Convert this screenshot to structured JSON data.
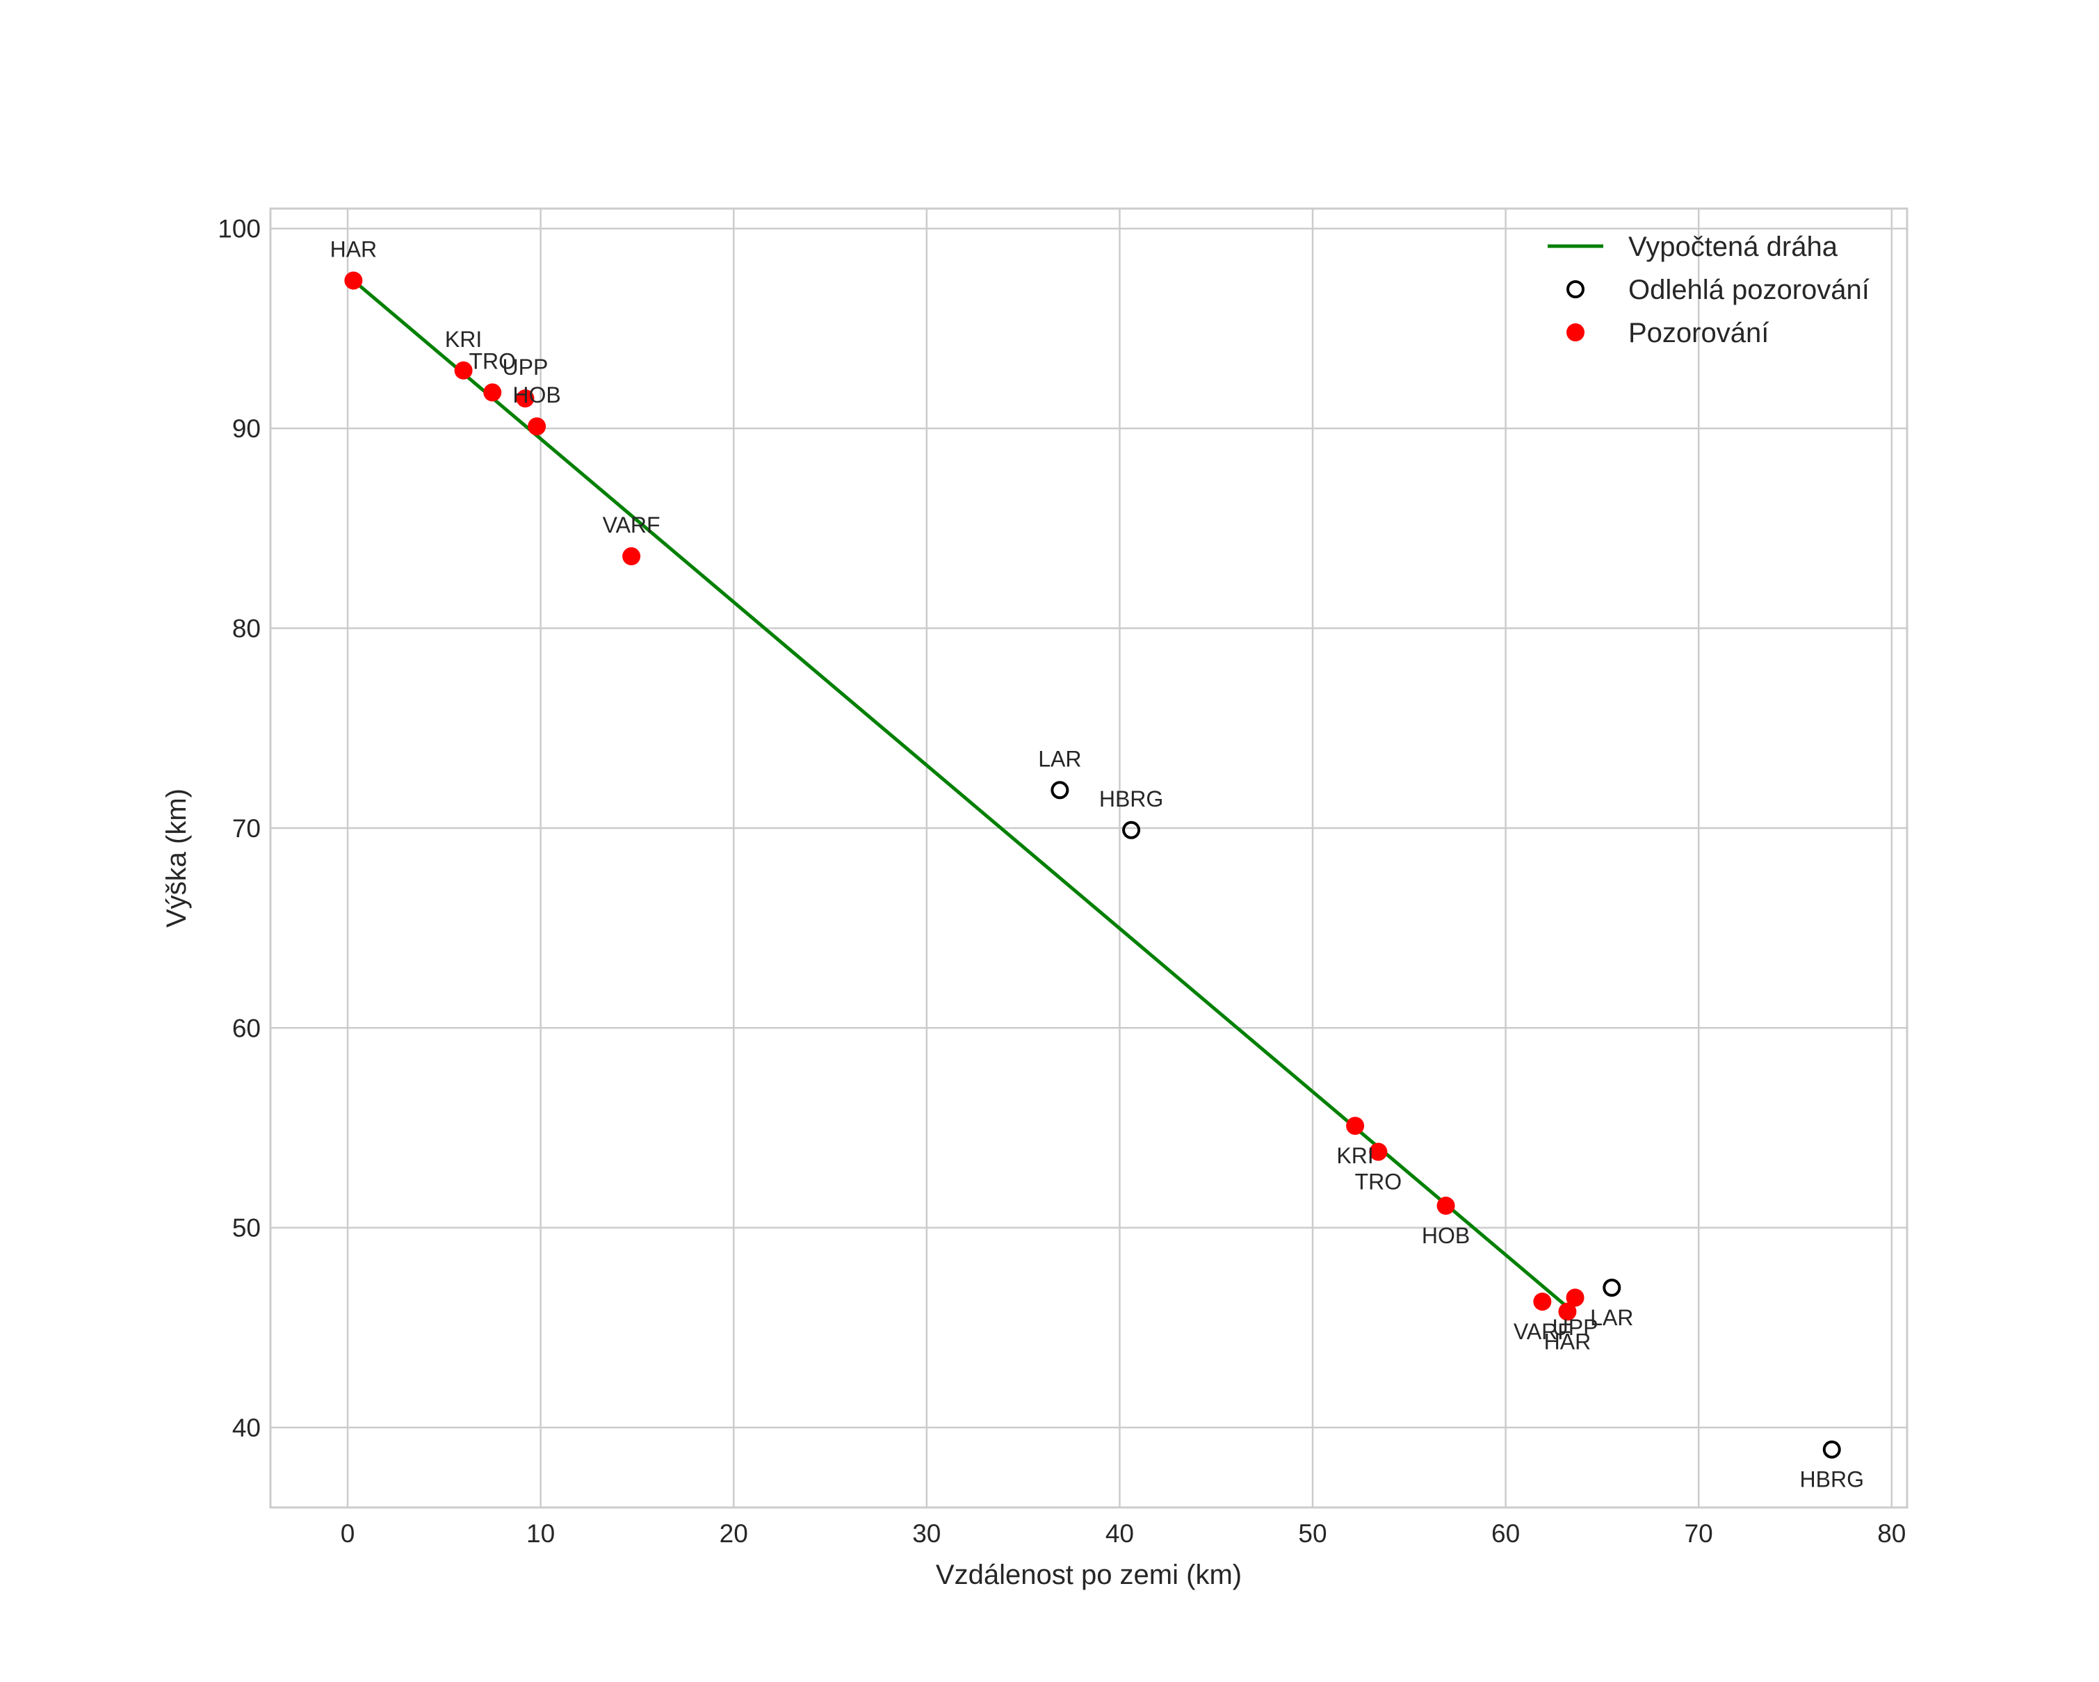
{
  "chart_data": {
    "type": "scatter",
    "title": "",
    "xlabel": "Vzdálenost po zemi (km)",
    "ylabel": "Výška (km)",
    "xlim": [
      -4,
      80.8
    ],
    "ylim": [
      36,
      101
    ],
    "xticks": [
      0,
      10,
      20,
      30,
      40,
      50,
      60,
      70,
      80
    ],
    "yticks": [
      40,
      50,
      60,
      70,
      80,
      90,
      100
    ],
    "grid": true,
    "legend_position": "top-right",
    "colors": {
      "line": "#008000",
      "observation": "#ff0000",
      "outlier_edge": "#000000"
    },
    "series": [
      {
        "name": "Vypočtená dráha",
        "kind": "line",
        "points": [
          [
            0.3,
            97.4
          ],
          [
            63.6,
            45.7
          ]
        ]
      },
      {
        "name": "Odlehlá pozorování",
        "kind": "outlier",
        "points": [
          {
            "x": 36.9,
            "y": 71.9,
            "label": "LAR",
            "label_pos": "above"
          },
          {
            "x": 40.6,
            "y": 69.9,
            "label": "HBRG",
            "label_pos": "above"
          },
          {
            "x": 65.5,
            "y": 47.0,
            "label": "LAR",
            "label_pos": "below"
          },
          {
            "x": 76.9,
            "y": 38.9,
            "label": "HBRG",
            "label_pos": "below"
          }
        ]
      },
      {
        "name": "Pozorování",
        "kind": "observation",
        "points": [
          {
            "x": 0.3,
            "y": 97.4,
            "label": "HAR",
            "label_pos": "above"
          },
          {
            "x": 6.0,
            "y": 92.9,
            "label": "KRI",
            "label_pos": "above"
          },
          {
            "x": 7.5,
            "y": 91.8,
            "label": "TRO",
            "label_pos": "above"
          },
          {
            "x": 9.2,
            "y": 91.5,
            "label": "UPP",
            "label_pos": "above"
          },
          {
            "x": 9.8,
            "y": 90.1,
            "label": "HOB",
            "label_pos": "above"
          },
          {
            "x": 14.7,
            "y": 83.6,
            "label": "VARF",
            "label_pos": "above"
          },
          {
            "x": 52.2,
            "y": 55.1,
            "label": "KRI",
            "label_pos": "below"
          },
          {
            "x": 53.4,
            "y": 53.8,
            "label": "TRO",
            "label_pos": "below"
          },
          {
            "x": 56.9,
            "y": 51.1,
            "label": "HOB",
            "label_pos": "below"
          },
          {
            "x": 61.9,
            "y": 46.3,
            "label": "VARF",
            "label_pos": "below"
          },
          {
            "x": 63.6,
            "y": 46.5,
            "label": "UPP",
            "label_pos": "below"
          },
          {
            "x": 63.2,
            "y": 45.8,
            "label": "HAR",
            "label_pos": "below"
          }
        ]
      }
    ]
  }
}
